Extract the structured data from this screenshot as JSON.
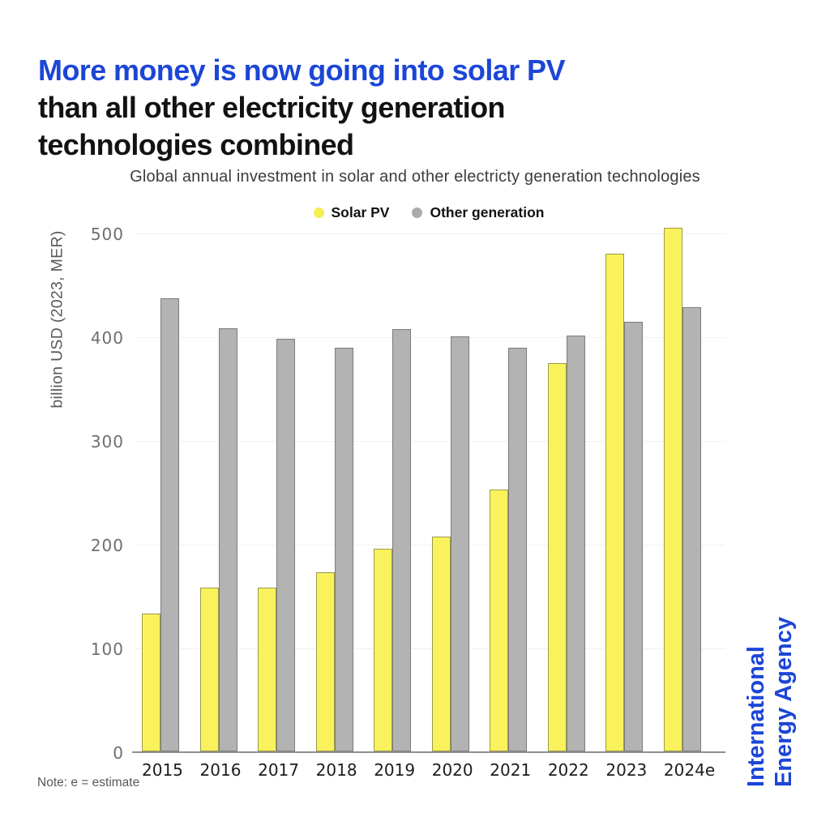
{
  "title": {
    "highlight": "More money is now going into solar PV",
    "rest_line1": "than all other electricity generation",
    "rest_line2": "technologies combined",
    "highlight_color": "#1c46d6",
    "rest_color": "#121212"
  },
  "subtitle": "Global annual investment in solar and other electricty generation technologies",
  "legend": [
    {
      "label": "Solar PV",
      "color": "#f6ee52"
    },
    {
      "label": "Other generation",
      "color": "#ababab"
    }
  ],
  "chart_data": {
    "type": "bar",
    "title": "Global annual investment in solar and other electricty generation technologies",
    "categories": [
      "2015",
      "2016",
      "2017",
      "2018",
      "2019",
      "2020",
      "2021",
      "2022",
      "2023",
      "2024e"
    ],
    "series": [
      {
        "name": "Solar PV",
        "fill": "#faf25c",
        "border": "#9a9a4a",
        "values": [
          133,
          158,
          158,
          173,
          195,
          207,
          252,
          374,
          480,
          505
        ]
      },
      {
        "name": "Other generation",
        "fill": "#b3b3b3",
        "border": "#7c7c7c",
        "values": [
          437,
          408,
          398,
          389,
          407,
          400,
          389,
          401,
          414,
          428
        ]
      }
    ],
    "xlabel": "",
    "ylabel": "billion USD (2023, MER)",
    "yticks": [
      0,
      100,
      200,
      300,
      400,
      500
    ],
    "ylim": [
      0,
      500
    ],
    "grid": true,
    "legend_position": "top-center"
  },
  "note": "Note: e = estimate",
  "branding": {
    "line1": "International",
    "line2": "Energy Agency",
    "color": "#1c46d6"
  }
}
